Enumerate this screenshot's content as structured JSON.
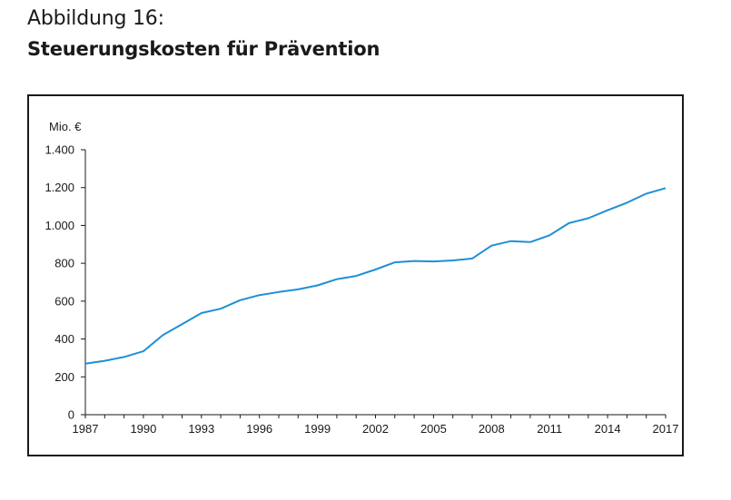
{
  "figure": {
    "label": "Abbildung 16:",
    "title": "Steuerungskosten für Prävention"
  },
  "chart_data": {
    "type": "line",
    "ylabel": "Mio. €",
    "xlabel": "",
    "xlim": [
      1987,
      2017
    ],
    "ylim": [
      0,
      1400
    ],
    "yticks": [
      0,
      200,
      400,
      600,
      800,
      1000,
      1200,
      1400
    ],
    "ytick_labels": [
      "0",
      "200",
      "400",
      "600",
      "800",
      "1.000",
      "1.200",
      "1.400"
    ],
    "xticks": [
      1987,
      1990,
      1993,
      1996,
      1999,
      2002,
      2005,
      2008,
      2011,
      2014,
      2017
    ],
    "xtick_labels": [
      "1987",
      "1990",
      "1993",
      "1996",
      "1999",
      "2002",
      "2005",
      "2008",
      "2011",
      "2014",
      "2017"
    ],
    "grid": false,
    "series": [
      {
        "color": "#1f8fd6",
        "x": [
          1987,
          1988,
          1989,
          1990,
          1991,
          1992,
          1993,
          1994,
          1995,
          1996,
          1997,
          1998,
          1999,
          2000,
          2001,
          2002,
          2003,
          2004,
          2005,
          2006,
          2007,
          2008,
          2009,
          2010,
          2011,
          2012,
          2013,
          2014,
          2015,
          2016,
          2017
        ],
        "values": [
          270,
          285,
          305,
          335,
          420,
          478,
          537,
          560,
          605,
          632,
          648,
          662,
          683,
          716,
          733,
          767,
          805,
          812,
          810,
          815,
          825,
          893,
          917,
          912,
          948,
          1012,
          1038,
          1080,
          1120,
          1168,
          1197
        ]
      }
    ]
  }
}
